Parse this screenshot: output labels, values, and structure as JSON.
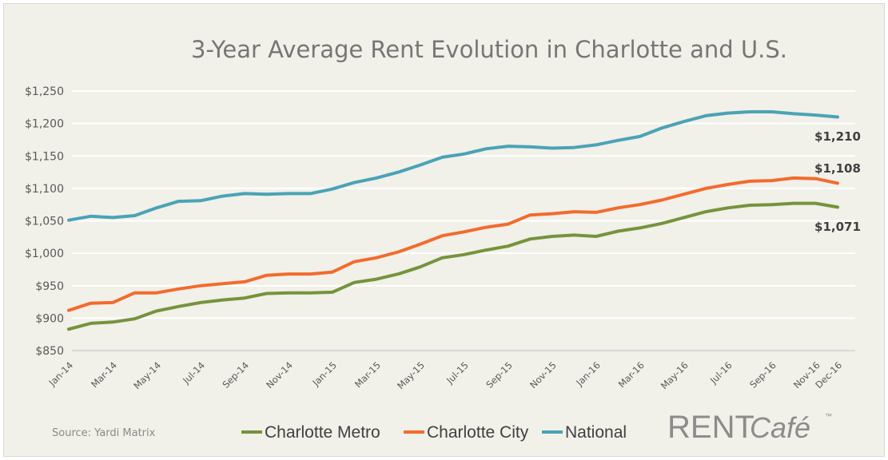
{
  "chart_data": {
    "type": "line",
    "title": "3-Year Average Rent Evolution in Charlotte and U.S.",
    "xlabel": "",
    "ylabel": "",
    "ylim": [
      850,
      1250
    ],
    "yticks": [
      "$850",
      "$900",
      "$950",
      "$1,000",
      "$1,050",
      "$1,100",
      "$1,150",
      "$1,200",
      "$1,250"
    ],
    "ytick_values": [
      850,
      900,
      950,
      1000,
      1050,
      1100,
      1150,
      1200,
      1250
    ],
    "grid": true,
    "legend_position": "bottom",
    "x": [
      "Jan-14",
      "Feb-14",
      "Mar-14",
      "Apr-14",
      "May-14",
      "Jun-14",
      "Jul-14",
      "Aug-14",
      "Sep-14",
      "Oct-14",
      "Nov-14",
      "Dec-14",
      "Jan-15",
      "Feb-15",
      "Mar-15",
      "Apr-15",
      "May-15",
      "Jun-15",
      "Jul-15",
      "Aug-15",
      "Sep-15",
      "Oct-15",
      "Nov-15",
      "Dec-15",
      "Jan-16",
      "Feb-16",
      "Mar-16",
      "Apr-16",
      "May-16",
      "Jun-16",
      "Jul-16",
      "Aug-16",
      "Sep-16",
      "Oct-16",
      "Nov-16",
      "Dec-16"
    ],
    "xtick_labels": [
      "Jan-14",
      "Mar-14",
      "May-14",
      "Jul-14",
      "Sep-14",
      "Nov-14",
      "Jan-15",
      "Mar-15",
      "May-15",
      "Jul-15",
      "Sep-15",
      "Nov-15",
      "Jan-16",
      "Mar-16",
      "May-16",
      "Jul-16",
      "Sep-16",
      "Nov-16",
      "Dec-16"
    ],
    "series": [
      {
        "name": "Charlotte Metro",
        "color": "#76933c",
        "end_label": "$1,071",
        "values": [
          883,
          892,
          894,
          899,
          911,
          918,
          924,
          928,
          931,
          938,
          939,
          939,
          940,
          955,
          960,
          968,
          979,
          993,
          998,
          1005,
          1011,
          1022,
          1026,
          1028,
          1026,
          1034,
          1039,
          1046,
          1055,
          1064,
          1070,
          1074,
          1075,
          1077,
          1077,
          1071
        ]
      },
      {
        "name": "Charlotte City",
        "color": "#f26b2e",
        "end_label": "$1,108",
        "values": [
          912,
          923,
          924,
          939,
          939,
          945,
          950,
          953,
          956,
          966,
          968,
          968,
          971,
          987,
          993,
          1002,
          1014,
          1027,
          1033,
          1040,
          1045,
          1059,
          1061,
          1064,
          1063,
          1070,
          1075,
          1082,
          1091,
          1100,
          1106,
          1111,
          1112,
          1116,
          1115,
          1108
        ]
      },
      {
        "name": "National",
        "color": "#4aa3b5",
        "end_label": "$1,210",
        "values": [
          1051,
          1057,
          1055,
          1058,
          1070,
          1080,
          1081,
          1088,
          1092,
          1091,
          1092,
          1092,
          1099,
          1109,
          1116,
          1125,
          1136,
          1148,
          1153,
          1161,
          1165,
          1164,
          1162,
          1163,
          1167,
          1174,
          1180,
          1193,
          1203,
          1212,
          1216,
          1218,
          1218,
          1215,
          1213,
          1210
        ]
      }
    ]
  },
  "footer": {
    "source": "Source: Yardi Matrix",
    "logo_text": "RENTCafé"
  }
}
